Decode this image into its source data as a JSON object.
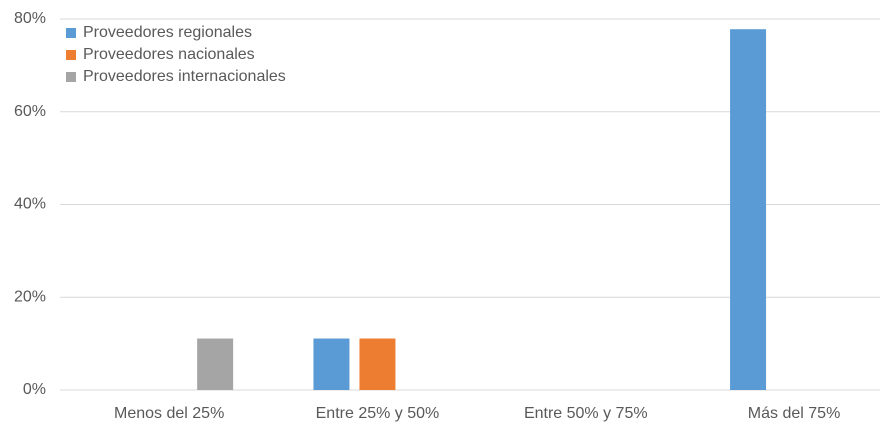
{
  "chart_data": {
    "type": "bar",
    "categories": [
      "Menos del 25%",
      "Entre 25% y 50%",
      "Entre 50% y 75%",
      "Más del 75%"
    ],
    "series": [
      {
        "name": "Proveedores regionales",
        "color": "#5b9bd5",
        "values": [
          0,
          11.1,
          0,
          77.8
        ]
      },
      {
        "name": "Proveedores nacionales",
        "color": "#ed7d31",
        "values": [
          0,
          11.1,
          0,
          0
        ]
      },
      {
        "name": "Proveedores internacionales",
        "color": "#a5a5a5",
        "values": [
          11.1,
          0,
          0,
          0
        ]
      }
    ],
    "ylim": [
      0,
      80
    ],
    "yticks": [
      {
        "value": 0,
        "label": "0%"
      },
      {
        "value": 20,
        "label": "20%"
      },
      {
        "value": 40,
        "label": "40%"
      },
      {
        "value": 60,
        "label": "60%"
      },
      {
        "value": 80,
        "label": "80%"
      }
    ],
    "grid": true,
    "legend": "top-left"
  }
}
